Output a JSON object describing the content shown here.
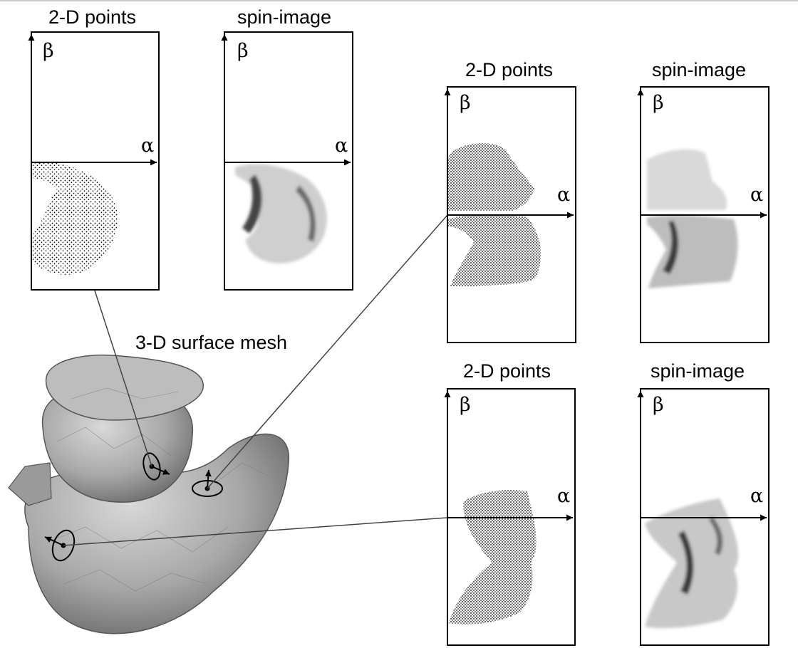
{
  "mesh_label": "3-D surface mesh",
  "panels": [
    {
      "points_title": "2-D points",
      "spin_title": "spin-image",
      "alpha": "α",
      "beta": "β"
    },
    {
      "points_title": "2-D points",
      "spin_title": "spin-image",
      "alpha": "α",
      "beta": "β"
    },
    {
      "points_title": "2-D points",
      "spin_title": "spin-image",
      "alpha": "α",
      "beta": "β"
    }
  ]
}
